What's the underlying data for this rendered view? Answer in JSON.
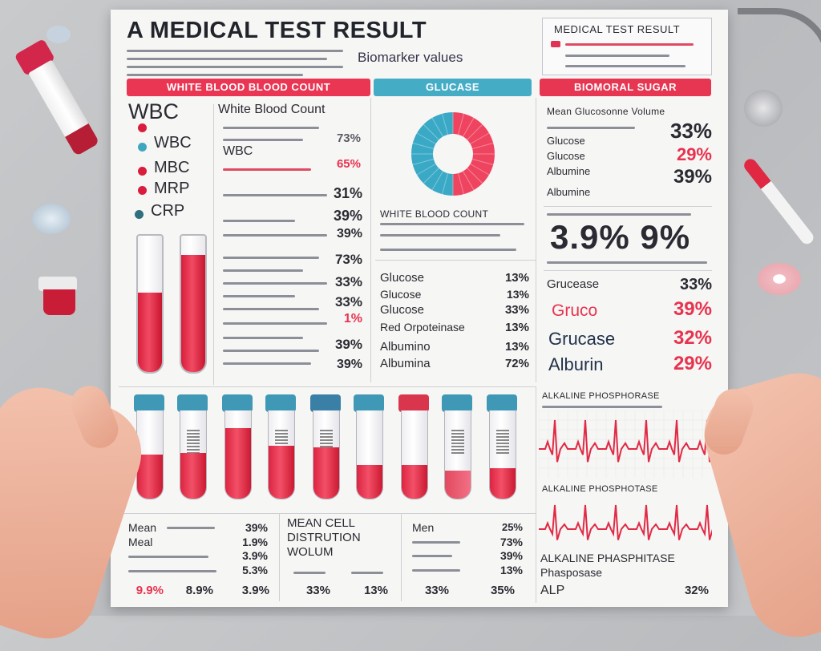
{
  "header": {
    "title": "A MEDICAL TEST RESULT",
    "subtitle": "Biomarker values",
    "mini_title": "MEDICAL TEST RESULT"
  },
  "bands": {
    "left": "WHITE BLOOD BLOOD COUNT",
    "middle": "GLUCASE",
    "right": "BIOMORAL SUGAR"
  },
  "left_panel": {
    "big_label": "WBC",
    "legend": [
      {
        "label": "WBC",
        "color": "#d81e3c"
      },
      {
        "label": "WBC",
        "color": "#3fa6c0"
      },
      {
        "label": "MBC",
        "color": "#d81e3c"
      },
      {
        "label": "MRP",
        "color": "#d81e3c"
      },
      {
        "label": "CRP",
        "color": "#2f6f7e"
      }
    ],
    "col_title": "White Blood Count",
    "col_sub": "WBC",
    "values": [
      "73%",
      "65%",
      "31%",
      "39%",
      "39%",
      "73%",
      "33%",
      "33%",
      "1%",
      "39%",
      "39%"
    ]
  },
  "middle_panel": {
    "donut": {
      "red_pct": 50,
      "blue_pct": 50,
      "red": "#ef4460",
      "blue": "#3aa9c6"
    },
    "donut_label": "WHITE BLOOD COUNT",
    "rows": [
      {
        "label": "Glucose",
        "value": "13%"
      },
      {
        "label": "Glucose",
        "value": "13%"
      },
      {
        "label": "Glucose",
        "value": "33%"
      },
      {
        "label": "Red Orpoteinase",
        "value": "13%"
      },
      {
        "label": "Albumino",
        "value": "13%"
      },
      {
        "label": "Albumina",
        "value": "72%"
      }
    ]
  },
  "right_panel": {
    "col_title": "Mean Glucosonne Volume",
    "rows": [
      {
        "label": "Glucose",
        "value": "33%"
      },
      {
        "label": "Glucose",
        "value": "29%"
      },
      {
        "label": "Albumine",
        "value": "39%"
      },
      {
        "label": "Albumine",
        "value": ""
      }
    ],
    "big_value": "3.9% 9%",
    "rows2": [
      {
        "label": "Grucease",
        "value": "33%"
      },
      {
        "label": "Gruco",
        "value": "39%"
      },
      {
        "label": "Grucase",
        "value": "32%"
      },
      {
        "label": "Alburin",
        "value": "29%"
      }
    ]
  },
  "ecg": {
    "label1": "ALKALINE PHOSPHORASE",
    "label2": "ALKALINE PHOSPHOTASE"
  },
  "bottom": {
    "col1": {
      "rows": [
        {
          "label": "Mean",
          "value": "39%"
        },
        {
          "label": "Meal",
          "value": "1.9%"
        },
        {
          "label": "",
          "value": "3.9%"
        },
        {
          "label": "",
          "value": "5.3%"
        }
      ],
      "footer": [
        "9.9%",
        "8.9%",
        "3.9%"
      ]
    },
    "col2": {
      "title": [
        "MEAN CELL",
        "DISTRUTION",
        "WOLUM"
      ],
      "footer": [
        "33%",
        "13%"
      ]
    },
    "col3": {
      "rows": [
        {
          "label": "Men",
          "value": "25%"
        },
        {
          "label": "",
          "value": "73%"
        },
        {
          "label": "",
          "value": "39%"
        },
        {
          "label": "",
          "value": "13%"
        }
      ],
      "footer": [
        "33%",
        "35%"
      ]
    },
    "col4": {
      "lines": [
        "ALKALINE PHASPHITASE",
        "Phasposase"
      ],
      "alp_label": "ALP",
      "alp_value": "32%"
    }
  },
  "colors": {
    "accent_red": "#e8334f",
    "accent_blue": "#3aa9c6",
    "ink": "#2a2a33"
  }
}
